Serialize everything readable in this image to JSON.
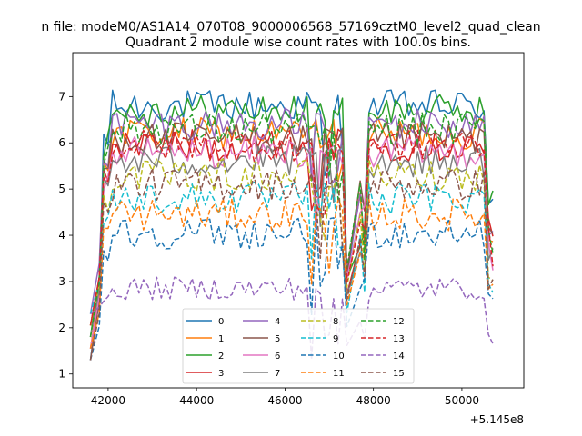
{
  "chart_data": {
    "type": "line",
    "suptitle": "n file: modeM0/AS1A14_070T08_9000006568_57169cztM0_level2_quad_clean",
    "title": "Quadrant 2 module wise count rates with 100.0s bins.",
    "xlabel": "",
    "ylabel": "",
    "x_offset_label": "+5.145e8",
    "xlim": [
      41200,
      51400
    ],
    "ylim": [
      0.7,
      7.95
    ],
    "x_ticks": [
      42000,
      44000,
      46000,
      48000,
      50000
    ],
    "x_tick_labels": [
      "42000",
      "44000",
      "46000",
      "48000",
      "50000"
    ],
    "y_ticks": [
      1,
      2,
      3,
      4,
      5,
      6,
      7
    ],
    "y_tick_labels": [
      "1",
      "2",
      "3",
      "4",
      "5",
      "6",
      "7"
    ],
    "grid": false,
    "legend_position": "bottom-center",
    "gap_x": [
      47400,
      47700
    ],
    "x_start": 41600,
    "x_end": 50700,
    "series": [
      {
        "name": "0",
        "color": "#1f77b4",
        "style": "solid",
        "level": 6.8
      },
      {
        "name": "1",
        "color": "#ff7f0e",
        "style": "solid",
        "level": 6.2
      },
      {
        "name": "2",
        "color": "#2ca02c",
        "style": "solid",
        "level": 6.7
      },
      {
        "name": "3",
        "color": "#d62728",
        "style": "solid",
        "level": 5.95
      },
      {
        "name": "4",
        "color": "#9467bd",
        "style": "solid",
        "level": 6.4
      },
      {
        "name": "5",
        "color": "#8c564b",
        "style": "solid",
        "level": 6.1
      },
      {
        "name": "6",
        "color": "#e377c2",
        "style": "solid",
        "level": 5.8
      },
      {
        "name": "7",
        "color": "#7f7f7f",
        "style": "solid",
        "level": 5.6
      },
      {
        "name": "8",
        "color": "#bcbd22",
        "style": "dashed",
        "level": 5.3
      },
      {
        "name": "9",
        "color": "#17becf",
        "style": "dashed",
        "level": 4.8
      },
      {
        "name": "10",
        "color": "#1f77b4",
        "style": "dashed",
        "level": 4.05
      },
      {
        "name": "11",
        "color": "#ff7f0e",
        "style": "dashed",
        "level": 4.45
      },
      {
        "name": "12",
        "color": "#2ca02c",
        "style": "dashed",
        "level": 6.3
      },
      {
        "name": "13",
        "color": "#d62728",
        "style": "dashed",
        "level": 5.95
      },
      {
        "name": "14",
        "color": "#9467bd",
        "style": "dashed",
        "level": 2.85
      },
      {
        "name": "15",
        "color": "#8c564b",
        "style": "dashed",
        "level": 5.1
      }
    ]
  }
}
